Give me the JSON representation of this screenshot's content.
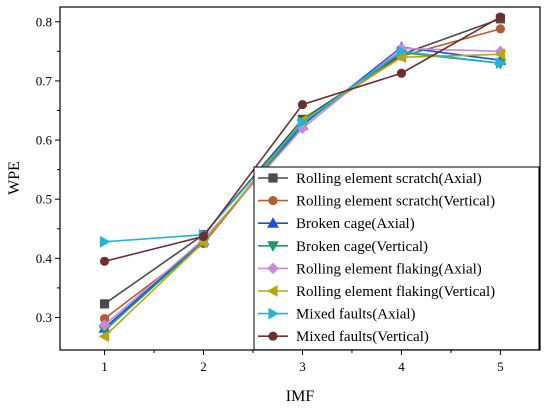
{
  "chart_data": {
    "type": "line",
    "xlabel": "IMF",
    "ylabel": "WPE",
    "x": [
      1,
      2,
      3,
      4,
      5
    ],
    "xlim": [
      0.55,
      5.4
    ],
    "ylim": [
      0.245,
      0.825
    ],
    "xticks": [
      "1",
      "2",
      "3",
      "4",
      "5"
    ],
    "yticks": [
      "0.3",
      "0.4",
      "0.5",
      "0.6",
      "0.7",
      "0.8"
    ],
    "legend_position": "inside-right",
    "grid": false,
    "series": [
      {
        "name": "Rolling element scratch(Axial)",
        "values": [
          0.323,
          0.44,
          0.635,
          0.745,
          0.805
        ],
        "color": "#4a4a4a",
        "marker": "square"
      },
      {
        "name": "Rolling element scratch(Vertical)",
        "values": [
          0.298,
          0.425,
          0.63,
          0.742,
          0.788
        ],
        "color": "#b35c38",
        "marker": "circle"
      },
      {
        "name": "Broken cage(Axial)",
        "values": [
          0.282,
          0.43,
          0.625,
          0.757,
          0.735
        ],
        "color": "#1f4fd8",
        "marker": "triangle-up"
      },
      {
        "name": "Broken cage(Vertical)",
        "values": [
          0.278,
          0.428,
          0.628,
          0.748,
          0.73
        ],
        "color": "#1a9a6c",
        "marker": "triangle-down"
      },
      {
        "name": "Rolling element flaking(Axial)",
        "values": [
          0.287,
          0.432,
          0.62,
          0.755,
          0.75
        ],
        "color": "#c58ad8",
        "marker": "diamond"
      },
      {
        "name": "Rolling element flaking(Vertical)",
        "values": [
          0.268,
          0.427,
          0.633,
          0.74,
          0.745
        ],
        "color": "#b5a70f",
        "marker": "triangle-left"
      },
      {
        "name": "Mixed faults(Axial)",
        "values": [
          0.428,
          0.44,
          0.63,
          0.75,
          0.73
        ],
        "color": "#2ab0d6",
        "marker": "triangle-right"
      },
      {
        "name": "Mixed faults(Vertical)",
        "values": [
          0.395,
          0.437,
          0.66,
          0.713,
          0.808
        ],
        "color": "#6b3030",
        "marker": "circle"
      }
    ]
  }
}
